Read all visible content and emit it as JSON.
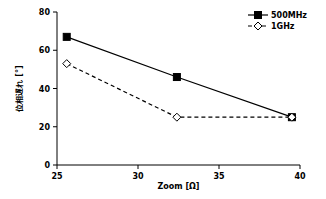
{
  "chart_data": {
    "type": "line",
    "x_label": "Zoom [Ω]",
    "y_label": "位相遅れ [°]",
    "x": [
      25.6,
      32.4,
      39.5
    ],
    "series": [
      {
        "name": "500MHz",
        "color": "#000000",
        "marker": "square",
        "line_style": "solid",
        "values": [
          67,
          46,
          25
        ]
      },
      {
        "name": "1GHz",
        "color": "#000000",
        "marker": "diamond",
        "line_style": "dashed",
        "values": [
          53,
          25,
          25
        ]
      }
    ],
    "xlim": [
      25,
      40
    ],
    "xticks": [
      25,
      30,
      35,
      40
    ],
    "ylim": [
      0,
      80
    ],
    "yticks": [
      0,
      20,
      40,
      60,
      80
    ],
    "grid": false,
    "legend": "upper right"
  }
}
